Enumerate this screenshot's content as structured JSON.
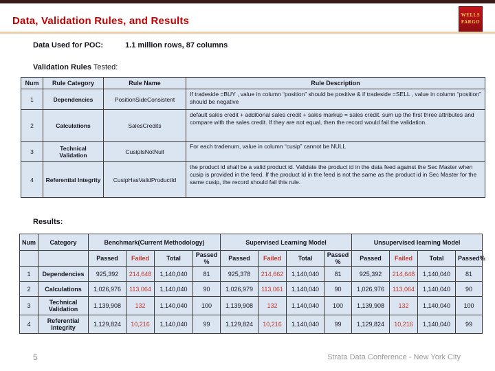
{
  "header": {
    "title": "Data, Validation Rules, and Results",
    "logo_line1": "WELLS",
    "logo_line2": "FARGO"
  },
  "sections": {
    "data_used_label": "Data Used for POC:",
    "data_used_value": "1.1 million rows, 87 columns",
    "validation_heading_bold": "Validation Rules",
    "validation_heading_tail": " Tested:",
    "results_heading": "Results:"
  },
  "validation_table": {
    "headers": [
      "Num",
      "Rule Category",
      "Rule Name",
      "Rule Description"
    ],
    "rows": [
      {
        "num": "1",
        "category": "Dependencies",
        "name": "PositionSideConsistent",
        "description": "If tradeside =BUY , value in column “position” should be positive & if tradeside =SELL , value in column “position” should be negative"
      },
      {
        "num": "2",
        "category": "Calculations",
        "name": "SalesCredits",
        "description": "default sales credit + additional sales credit + sales markup = sales credit. sum up the first three attributes and compare with the sales credit. If they are not equal, then the record would fail the validation."
      },
      {
        "num": "3",
        "category": "Technical Validation",
        "name": "CusipIsNotNull",
        "description": "For each tradenum, value in column “cusip” cannot be NULL"
      },
      {
        "num": "4",
        "category": "Referential Integrity",
        "name": "CusipHasValidProductId",
        "description": "the product id shall be a valid product id. Validate the product id in the data feed against the Sec Master when cusip is provided in the feed. If the product Id in the feed is not the same as the product id in Sec Master for the same cusip, the record should fail this rule."
      }
    ]
  },
  "results_table": {
    "corner_headers": [
      "Num",
      "Category"
    ],
    "groups": [
      {
        "label": "Benchmark(Current Methodology)",
        "sub": [
          "Passed",
          "Failed",
          "Total",
          "Passed %"
        ]
      },
      {
        "label": "Supervised Learning Model",
        "sub": [
          "Passed",
          "Failed",
          "Total",
          "Passed %"
        ]
      },
      {
        "label": "Unsupervised learning Model",
        "sub": [
          "Passed",
          "Failed",
          "Total",
          "Passed%"
        ]
      }
    ],
    "rows": [
      {
        "num": "1",
        "category": "Dependencies",
        "cells": [
          "925,392",
          "214,648",
          "1,140,040",
          "81",
          "925,378",
          "214,662",
          "1,140,040",
          "81",
          "925,392",
          "214,648",
          "1,140,040",
          "81"
        ]
      },
      {
        "num": "2",
        "category": "Calculations",
        "cells": [
          "1,026,976",
          "113,064",
          "1,140,040",
          "90",
          "1,026,979",
          "113,061",
          "1,140,040",
          "90",
          "1,026,976",
          "113,064",
          "1,140,040",
          "90"
        ]
      },
      {
        "num": "3",
        "category": "Technical Validation",
        "cells": [
          "1,139,908",
          "132",
          "1,140,040",
          "100",
          "1,139,908",
          "132",
          "1,140,040",
          "100",
          "1,139,908",
          "132",
          "1,140,040",
          "100"
        ]
      },
      {
        "num": "4",
        "category": "Referential Integrity",
        "cells": [
          "1,129,824",
          "10,216",
          "1,140,040",
          "99",
          "1,129,824",
          "10,216",
          "1,140,040",
          "99",
          "1,129,824",
          "10,216",
          "1,140,040",
          "99"
        ]
      }
    ]
  },
  "footer": {
    "page_number": "5",
    "conference": "Strata Data Conference - New York City"
  },
  "colors": {
    "title_red": "#C00000",
    "failed_red": "#C3392F",
    "accent_tan": "#ECCFA6",
    "top_bar": "#3A1A16",
    "table_bg": "#DBE5F1",
    "logo_red": "#B5121B",
    "logo_yellow": "#FFCC4D"
  }
}
